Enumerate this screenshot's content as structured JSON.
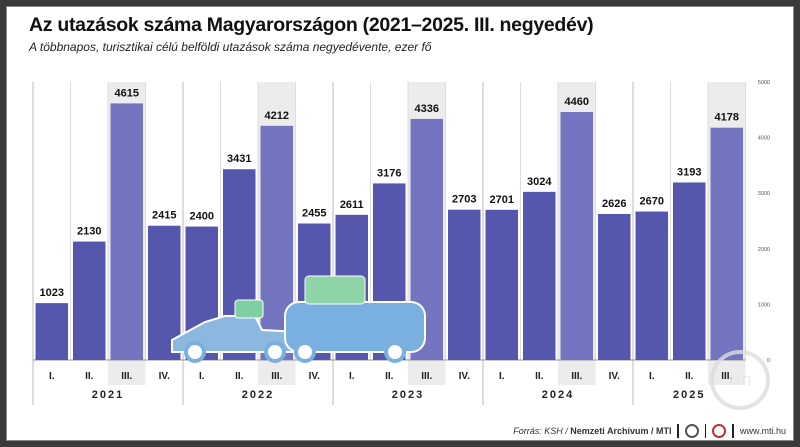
{
  "chart_data": {
    "type": "bar",
    "title": "Az utazások száma Magyarországon (2021–2025. III. negyedév)",
    "subtitle": "A többnapos, turisztikai célú belföldi utazások száma negyedévente, ezer fő",
    "years": [
      "2021",
      "2022",
      "2023",
      "2024",
      "2025"
    ],
    "categories": [
      "I.",
      "II.",
      "III.",
      "IV.",
      "I.",
      "II.",
      "III.",
      "IV.",
      "I.",
      "II.",
      "III.",
      "IV.",
      "I.",
      "II.",
      "III.",
      "IV.",
      "I.",
      "II.",
      "III."
    ],
    "values": [
      1023,
      2130,
      4615,
      2415,
      2400,
      3431,
      4212,
      2455,
      2611,
      3176,
      4336,
      2703,
      2701,
      3024,
      4460,
      2626,
      2670,
      3193,
      4178
    ],
    "ylim": [
      0,
      5000
    ],
    "yticks": [
      0,
      1000,
      2000,
      3000,
      4000,
      5000
    ],
    "axis_side": "right",
    "colors": {
      "bar": "#5557ad",
      "bar_q3": "#7475c0",
      "q3_background": "#ececec"
    }
  },
  "footer": {
    "source_label": "Forrás: KSH / ",
    "source_bold": "Nemzeti Archívum / MTI",
    "url": "www.mti.hu"
  },
  "watermark": "MTI"
}
